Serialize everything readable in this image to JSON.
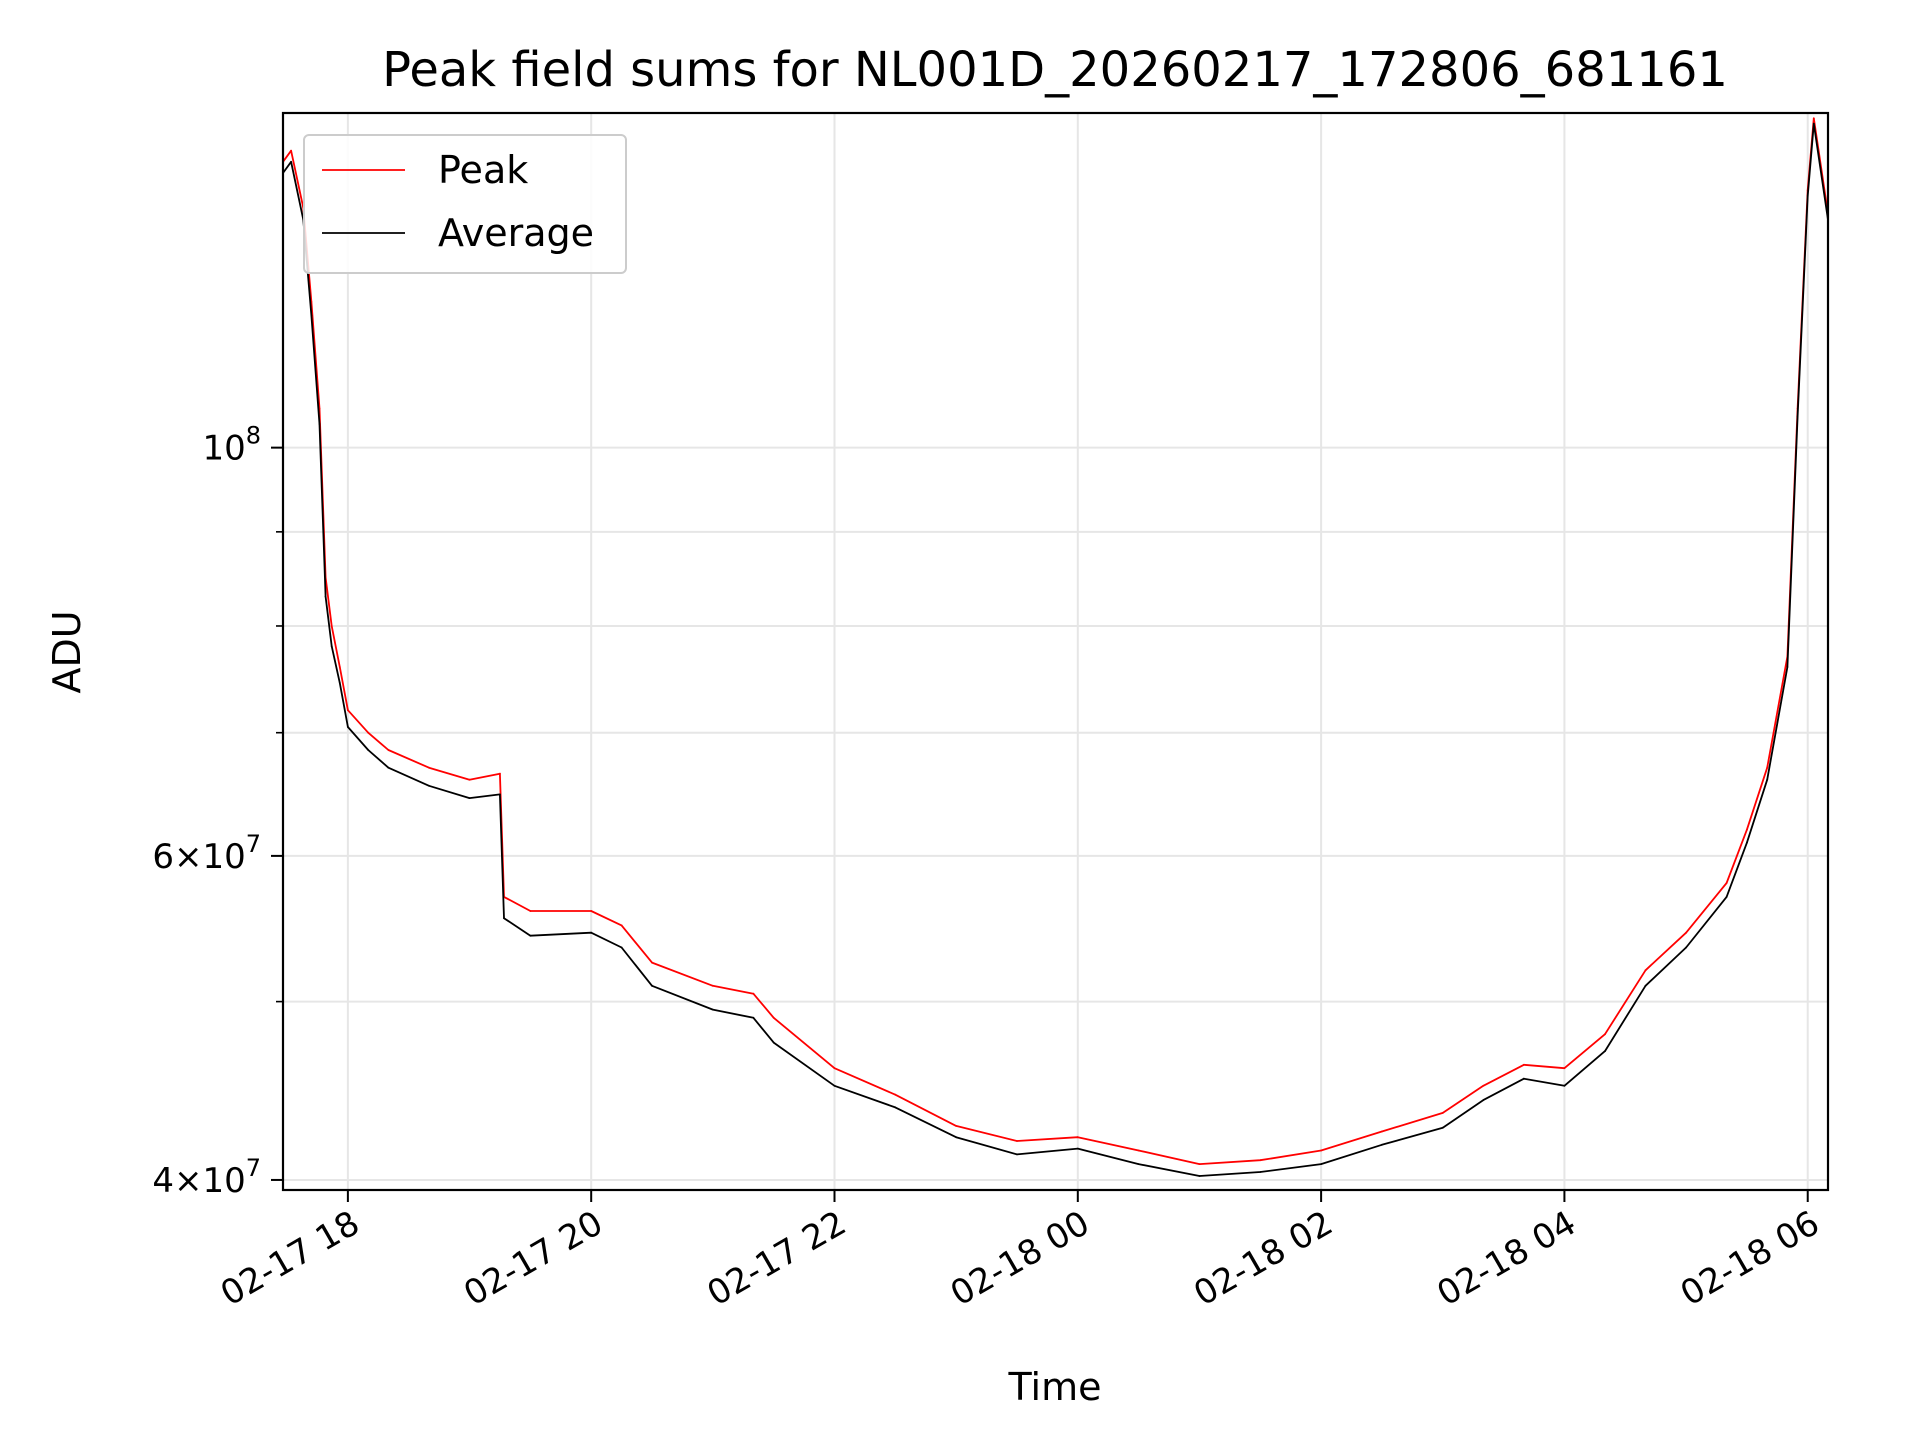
{
  "chart_data": {
    "type": "line",
    "title": "Peak field sums for NL001D_20260217_172806_681161",
    "xlabel": "Time",
    "ylabel": "ADU",
    "yscale": "log",
    "ylim": [
      39500000,
      152000000
    ],
    "xlim": [
      "02-17 17:28",
      "02-18 06:10"
    ],
    "x_tick_labels": [
      "02-17 18",
      "02-17 20",
      "02-17 22",
      "02-18 00",
      "02-18 02",
      "02-18 04",
      "02-18 06"
    ],
    "y_tick_labels": [
      {
        "value": 40000000,
        "mantissa": "4",
        "exponent": "7"
      },
      {
        "value": 60000000,
        "mantissa": "6",
        "exponent": "7"
      },
      {
        "value": 100000000,
        "mantissa": "",
        "exponent": "8"
      }
    ],
    "grid": true,
    "legend_position": "upper-left",
    "series": [
      {
        "name": "Peak",
        "color": "#ff0000",
        "x": [
          "02-17 17:28",
          "02-17 17:32",
          "02-17 17:38",
          "02-17 17:42",
          "02-17 17:46",
          "02-17 17:49",
          "02-17 17:52",
          "02-17 17:56",
          "02-17 18:00",
          "02-17 18:10",
          "02-17 18:20",
          "02-17 18:40",
          "02-17 19:00",
          "02-17 19:15",
          "02-17 19:17",
          "02-17 19:30",
          "02-17 20:00",
          "02-17 20:15",
          "02-17 20:30",
          "02-17 21:00",
          "02-17 21:20",
          "02-17 21:30",
          "02-17 22:00",
          "02-17 22:30",
          "02-17 23:00",
          "02-17 23:30",
          "02-18 00:00",
          "02-18 00:30",
          "02-18 01:00",
          "02-18 01:30",
          "02-18 02:00",
          "02-18 02:30",
          "02-18 03:00",
          "02-18 03:20",
          "02-18 03:40",
          "02-18 04:00",
          "02-18 04:20",
          "02-18 04:40",
          "02-18 05:00",
          "02-18 05:20",
          "02-18 05:30",
          "02-18 05:40",
          "02-18 05:50",
          "02-18 05:55",
          "02-18 06:00",
          "02-18 06:03",
          "02-18 06:10"
        ],
        "values": [
          143000000,
          145000000,
          135000000,
          120000000,
          105000000,
          85000000,
          80000000,
          76000000,
          72000000,
          70000000,
          68500000,
          67000000,
          66000000,
          66500000,
          57000000,
          56000000,
          56000000,
          55000000,
          52500000,
          51000000,
          50500000,
          49000000,
          46000000,
          44500000,
          42800000,
          42000000,
          42200000,
          41500000,
          40800000,
          41000000,
          41500000,
          42500000,
          43500000,
          45000000,
          46200000,
          46000000,
          48000000,
          52000000,
          54500000,
          58000000,
          62000000,
          67000000,
          77000000,
          105000000,
          138000000,
          151000000,
          134000000
        ]
      },
      {
        "name": "Average",
        "color": "#000000",
        "x": [
          "02-17 17:28",
          "02-17 17:32",
          "02-17 17:38",
          "02-17 17:42",
          "02-17 17:46",
          "02-17 17:49",
          "02-17 17:52",
          "02-17 17:56",
          "02-17 18:00",
          "02-17 18:10",
          "02-17 18:20",
          "02-17 18:40",
          "02-17 19:00",
          "02-17 19:15",
          "02-17 19:17",
          "02-17 19:30",
          "02-17 20:00",
          "02-17 20:15",
          "02-17 20:30",
          "02-17 21:00",
          "02-17 21:20",
          "02-17 21:30",
          "02-17 22:00",
          "02-17 22:30",
          "02-17 23:00",
          "02-17 23:30",
          "02-18 00:00",
          "02-18 00:30",
          "02-18 01:00",
          "02-18 01:30",
          "02-18 02:00",
          "02-18 02:30",
          "02-18 03:00",
          "02-18 03:20",
          "02-18 03:40",
          "02-18 04:00",
          "02-18 04:20",
          "02-18 04:40",
          "02-18 05:00",
          "02-18 05:20",
          "02-18 05:30",
          "02-18 05:40",
          "02-18 05:50",
          "02-18 05:55",
          "02-18 06:00",
          "02-18 06:03",
          "02-18 06:10"
        ],
        "values": [
          141000000,
          143000000,
          133000000,
          118000000,
          103000000,
          83000000,
          78000000,
          74500000,
          70500000,
          68500000,
          67000000,
          65500000,
          64500000,
          64800000,
          55500000,
          54300000,
          54500000,
          53500000,
          51000000,
          49500000,
          49000000,
          47500000,
          45000000,
          43800000,
          42200000,
          41300000,
          41600000,
          40800000,
          40200000,
          40400000,
          40800000,
          41800000,
          42700000,
          44200000,
          45400000,
          45000000,
          47000000,
          51000000,
          53500000,
          57000000,
          61000000,
          66000000,
          76000000,
          104000000,
          137000000,
          150000000,
          133000000
        ]
      }
    ]
  }
}
